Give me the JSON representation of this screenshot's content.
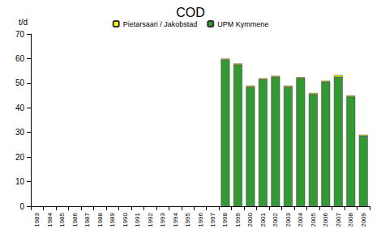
{
  "chart_data": {
    "type": "bar",
    "title": "COD",
    "y_label": "t/d",
    "categories": [
      "1983",
      "1984",
      "1985",
      "1986",
      "1987",
      "1988",
      "1989",
      "1990",
      "1991",
      "1992",
      "1993",
      "1994",
      "1995",
      "1996",
      "1997",
      "1998",
      "1999",
      "2000",
      "2001",
      "2002",
      "2003",
      "2004",
      "2005",
      "2006",
      "2007",
      "2008",
      "2009"
    ],
    "series": [
      {
        "name": "UPM Kymmene",
        "color": "#339933",
        "values": [
          null,
          null,
          null,
          null,
          null,
          null,
          null,
          null,
          null,
          null,
          null,
          null,
          null,
          null,
          null,
          59.5,
          57.5,
          48.5,
          51.5,
          52.5,
          48.5,
          52,
          45.5,
          50.5,
          52.5,
          44.5,
          28.5
        ]
      },
      {
        "name": "Pietarsaari / Jakobstad",
        "color": "#ffff00",
        "values": [
          null,
          null,
          null,
          null,
          null,
          null,
          null,
          null,
          null,
          null,
          null,
          null,
          null,
          null,
          null,
          0.5,
          0.5,
          0.5,
          0.5,
          0.5,
          0.5,
          0.5,
          0.5,
          0.5,
          0.8,
          0.5,
          0.5
        ]
      }
    ],
    "stacked": true,
    "legend": "top",
    "ylim": [
      0,
      70
    ],
    "yticks": [
      0,
      10,
      20,
      30,
      40,
      50,
      60,
      70
    ],
    "grid": false
  }
}
